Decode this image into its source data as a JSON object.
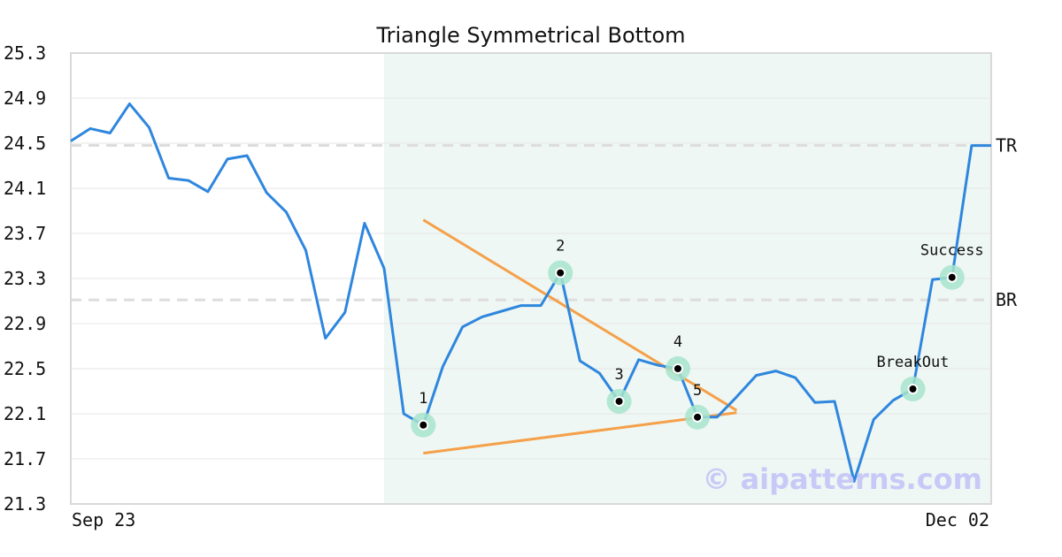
{
  "chart_data": {
    "type": "line",
    "title": "Triangle Symmetrical Bottom",
    "x_tick_labels": [
      "Sep 23",
      "Dec 02"
    ],
    "ylim": [
      21.3,
      25.3
    ],
    "yticks": [
      21.3,
      21.7,
      22.1,
      22.5,
      22.9,
      23.3,
      23.7,
      24.1,
      24.5,
      24.9,
      25.3
    ],
    "grid": true,
    "series": [
      {
        "values": [
          24.52,
          24.63,
          24.59,
          24.85,
          24.64,
          24.19,
          24.17,
          24.07,
          24.36,
          24.39,
          24.06,
          23.89,
          23.55,
          22.77,
          23.0,
          23.79,
          23.39,
          22.1,
          22.0,
          22.52,
          22.87,
          22.96,
          23.01,
          23.06,
          23.06,
          23.35,
          22.57,
          22.46,
          22.21,
          22.58,
          22.53,
          22.5,
          22.07,
          22.07,
          22.25,
          22.44,
          22.48,
          22.42,
          22.2,
          22.21,
          21.5,
          22.05,
          22.22,
          22.32,
          23.29,
          23.31,
          24.48,
          24.48
        ],
        "color": "#2e86de"
      }
    ],
    "levels": [
      {
        "label": "TR",
        "value": 24.48
      },
      {
        "label": "BR",
        "value": 23.11
      }
    ],
    "highlight_range": {
      "start_index": 16,
      "end_index": 47
    },
    "pattern_lines": [
      {
        "from": [
          18,
          23.82
        ],
        "to": [
          34,
          22.13
        ]
      },
      {
        "from": [
          18,
          21.75
        ],
        "to": [
          34,
          22.11
        ]
      }
    ],
    "markers": [
      {
        "label": "1",
        "index": 18,
        "value": 22.0,
        "label_pos": "above"
      },
      {
        "label": "2",
        "index": 25,
        "value": 23.35,
        "label_pos": "above"
      },
      {
        "label": "3",
        "index": 28,
        "value": 22.21,
        "label_pos": "above"
      },
      {
        "label": "4",
        "index": 31,
        "value": 22.5,
        "label_pos": "above"
      },
      {
        "label": "5",
        "index": 32,
        "value": 22.07,
        "label_pos": "above"
      },
      {
        "label": "BreakOut",
        "index": 43,
        "value": 22.32,
        "label_pos": "above"
      },
      {
        "label": "Success",
        "index": 45,
        "value": 23.31,
        "label_pos": "above"
      }
    ],
    "colors": {
      "line": "#2e86de",
      "pattern": "#f5a04a",
      "highlight": "#eef7f3",
      "marker_ring": "#a6e4cc",
      "level": "#dddddd"
    }
  },
  "watermark": "© aipatterns.com"
}
